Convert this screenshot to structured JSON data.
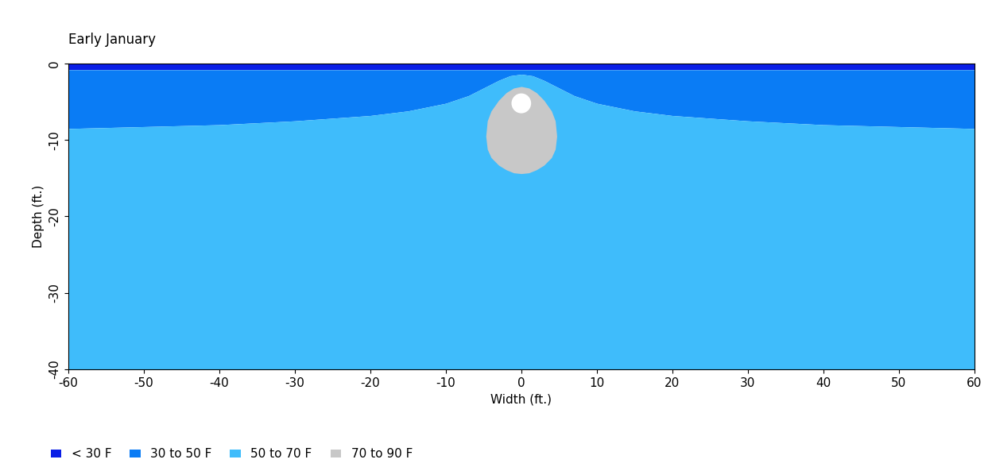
{
  "chart_data": {
    "type": "area",
    "title": "Early January",
    "x_label": "Width (ft.)",
    "y_label": "Depth (ft.)",
    "xlim": [
      -60,
      60
    ],
    "ylim": [
      -40,
      0
    ],
    "xticks": [
      -60,
      -50,
      -40,
      -30,
      -20,
      -10,
      0,
      10,
      20,
      30,
      40,
      50,
      60
    ],
    "yticks": [
      0,
      -10,
      -20,
      -30,
      -40
    ],
    "legend": "lower left",
    "series": [
      {
        "name": "< 30 F",
        "color": "#0a1ee6",
        "x": [
          -60,
          60
        ],
        "upper": [
          0,
          0
        ],
        "lower": [
          -0.8,
          -0.8
        ]
      },
      {
        "name": "30 to 50 F",
        "color": "#0a7cf5",
        "x": [
          -60,
          -40,
          -30,
          -20,
          -15,
          -10,
          -7,
          -5,
          -3,
          -1.5,
          0,
          1.5,
          3,
          5,
          7,
          10,
          15,
          20,
          30,
          40,
          60
        ],
        "upper": [
          -0.8,
          -0.8,
          -0.8,
          -0.8,
          -0.8,
          -0.8,
          -0.8,
          -0.8,
          -0.8,
          -0.8,
          -0.8,
          -0.8,
          -0.8,
          -0.8,
          -0.8,
          -0.8,
          -0.8,
          -0.8,
          -0.8,
          -0.8,
          -0.8
        ],
        "lower": [
          -8.5,
          -8.0,
          -7.5,
          -6.8,
          -6.2,
          -5.2,
          -4.2,
          -3.2,
          -2.2,
          -1.6,
          -1.4,
          -1.6,
          -2.2,
          -3.2,
          -4.2,
          -5.2,
          -6.2,
          -6.8,
          -7.5,
          -8.0,
          -8.5
        ]
      },
      {
        "name": "50 to 70 F",
        "color": "#3fbcfb",
        "x": [
          -60,
          -40,
          -30,
          -20,
          -15,
          -10,
          -7,
          -5,
          -3,
          -1.5,
          0,
          1.5,
          3,
          5,
          7,
          10,
          15,
          20,
          30,
          40,
          60
        ],
        "upper": [
          -8.5,
          -8.0,
          -7.5,
          -6.8,
          -6.2,
          -5.2,
          -4.2,
          -3.2,
          -2.2,
          -1.6,
          -1.4,
          -1.6,
          -2.2,
          -3.2,
          -4.2,
          -5.2,
          -6.2,
          -6.8,
          -7.5,
          -8.0,
          -8.5
        ],
        "lower": [
          -40,
          -40,
          -40,
          -40,
          -40,
          -40,
          -40,
          -40,
          -40,
          -40,
          -40,
          -40,
          -40,
          -40,
          -40,
          -40,
          -40,
          -40,
          -40,
          -40,
          -40
        ]
      },
      {
        "name": "70 to 90 F",
        "color": "#c8c8c8",
        "x": [
          -4.7,
          -4.5,
          -4,
          -3,
          -2,
          -1,
          0,
          1,
          2,
          3,
          4,
          4.5,
          4.7
        ],
        "upper": [
          -9.5,
          -7.5,
          -6.2,
          -4.8,
          -3.8,
          -3.2,
          -3.0,
          -3.2,
          -3.8,
          -4.8,
          -6.2,
          -7.5,
          -9.5
        ],
        "lower": [
          -9.5,
          -11.2,
          -12.3,
          -13.3,
          -13.9,
          -14.3,
          -14.4,
          -14.3,
          -13.9,
          -13.3,
          -12.3,
          -11.2,
          -9.5
        ]
      }
    ],
    "pipe": {
      "x": 0,
      "y": -5.2,
      "radius": 1.3,
      "color": "#ffffff"
    }
  }
}
